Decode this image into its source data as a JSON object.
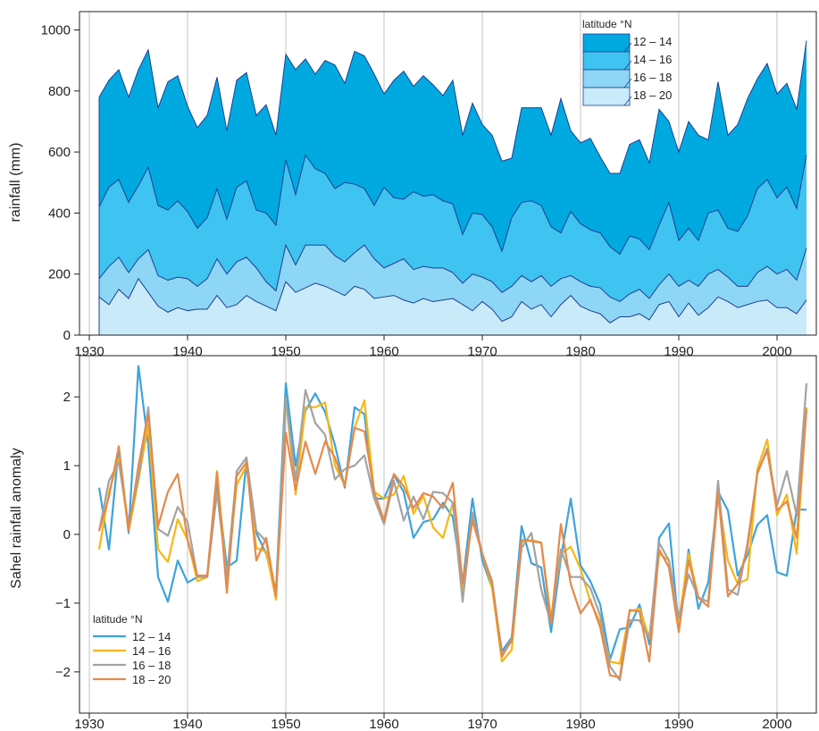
{
  "chart_data": [
    {
      "type": "area",
      "title": "",
      "xlabel": "",
      "ylabel": "rainfall  (mm)",
      "xlim": [
        1929,
        2004
      ],
      "ylim": [
        0,
        1060
      ],
      "xticks": [
        1930,
        1940,
        1950,
        1960,
        1970,
        1980,
        1990,
        2000
      ],
      "yticks": [
        0,
        200,
        400,
        600,
        800,
        1000
      ],
      "grid": "vertical",
      "stacked": true,
      "legend": {
        "title": "latitude °N",
        "position": "top-right",
        "entries": [
          "12 – 14",
          "14 – 16",
          "16 – 18",
          "18 – 20"
        ]
      },
      "colors": [
        "#00a9e0",
        "#3fc3f0",
        "#8dd6f5",
        "#c9eaf9"
      ],
      "line_color": "#1d3f8f",
      "x": [
        1931,
        1932,
        1933,
        1934,
        1935,
        1936,
        1937,
        1938,
        1939,
        1940,
        1941,
        1942,
        1943,
        1944,
        1945,
        1946,
        1947,
        1948,
        1949,
        1950,
        1951,
        1952,
        1953,
        1954,
        1955,
        1956,
        1957,
        1958,
        1959,
        1960,
        1961,
        1962,
        1963,
        1964,
        1965,
        1966,
        1967,
        1968,
        1969,
        1970,
        1971,
        1972,
        1973,
        1974,
        1975,
        1976,
        1977,
        1978,
        1979,
        1980,
        1981,
        1982,
        1983,
        1984,
        1985,
        1986,
        1987,
        1988,
        1989,
        1990,
        1991,
        1992,
        1993,
        1994,
        1995,
        1996,
        1997,
        1998,
        1999,
        2000,
        2001,
        2002,
        2003
      ],
      "series": [
        {
          "name": "18 – 20",
          "cumulative": [
            125,
            100,
            150,
            120,
            185,
            140,
            95,
            75,
            90,
            80,
            85,
            85,
            130,
            90,
            100,
            130,
            110,
            95,
            80,
            175,
            140,
            155,
            170,
            160,
            145,
            130,
            160,
            150,
            120,
            125,
            130,
            115,
            105,
            120,
            110,
            115,
            120,
            100,
            80,
            110,
            85,
            45,
            60,
            110,
            85,
            100,
            60,
            100,
            130,
            95,
            80,
            70,
            40,
            60,
            60,
            70,
            50,
            100,
            110,
            60,
            105,
            65,
            90,
            125,
            110,
            90,
            100,
            110,
            115,
            90,
            90,
            70,
            115
          ]
        },
        {
          "name": "16 – 18",
          "cumulative": [
            185,
            225,
            255,
            205,
            250,
            280,
            195,
            180,
            190,
            185,
            160,
            185,
            250,
            200,
            240,
            255,
            220,
            175,
            145,
            295,
            230,
            295,
            295,
            295,
            260,
            240,
            270,
            295,
            250,
            220,
            235,
            250,
            215,
            225,
            220,
            220,
            205,
            170,
            200,
            190,
            175,
            140,
            160,
            195,
            175,
            195,
            160,
            185,
            195,
            175,
            160,
            155,
            125,
            110,
            135,
            150,
            120,
            165,
            200,
            160,
            180,
            160,
            200,
            215,
            190,
            160,
            160,
            205,
            225,
            200,
            215,
            180,
            285
          ]
        },
        {
          "name": "14 – 16",
          "cumulative": [
            420,
            485,
            510,
            435,
            490,
            550,
            425,
            410,
            440,
            405,
            350,
            385,
            480,
            380,
            485,
            505,
            410,
            400,
            360,
            575,
            460,
            590,
            545,
            530,
            480,
            500,
            495,
            480,
            425,
            485,
            450,
            445,
            470,
            455,
            460,
            440,
            430,
            330,
            400,
            395,
            355,
            275,
            385,
            435,
            440,
            425,
            355,
            335,
            405,
            365,
            345,
            335,
            290,
            265,
            325,
            315,
            280,
            360,
            435,
            310,
            350,
            310,
            400,
            410,
            350,
            340,
            390,
            480,
            510,
            450,
            485,
            415,
            590
          ]
        },
        {
          "name": "12 – 14",
          "cumulative": [
            780,
            835,
            870,
            780,
            870,
            935,
            745,
            830,
            850,
            750,
            680,
            720,
            845,
            670,
            835,
            860,
            720,
            755,
            655,
            920,
            870,
            905,
            855,
            900,
            885,
            825,
            930,
            915,
            855,
            790,
            835,
            865,
            815,
            850,
            820,
            785,
            835,
            655,
            760,
            690,
            655,
            570,
            580,
            745,
            745,
            745,
            655,
            775,
            670,
            630,
            645,
            585,
            530,
            530,
            625,
            640,
            565,
            740,
            700,
            600,
            700,
            655,
            640,
            830,
            655,
            690,
            775,
            840,
            890,
            790,
            825,
            740,
            965
          ]
        }
      ]
    },
    {
      "type": "line",
      "title": "",
      "xlabel": "",
      "ylabel": "Sahel rainfall anomaly",
      "xlim": [
        1929,
        2004
      ],
      "ylim": [
        -2.6,
        2.6
      ],
      "xticks": [
        1930,
        1940,
        1950,
        1960,
        1970,
        1980,
        1990,
        2000
      ],
      "yticks": [
        -2,
        -1,
        0,
        1,
        2
      ],
      "grid": "vertical",
      "legend": {
        "title": "latitude °N",
        "position": "bottom-left"
      },
      "x": [
        1931,
        1932,
        1933,
        1934,
        1935,
        1936,
        1937,
        1938,
        1939,
        1940,
        1941,
        1942,
        1943,
        1944,
        1945,
        1946,
        1947,
        1948,
        1949,
        1950,
        1951,
        1952,
        1953,
        1954,
        1955,
        1956,
        1957,
        1958,
        1959,
        1960,
        1961,
        1962,
        1963,
        1964,
        1965,
        1966,
        1967,
        1968,
        1969,
        1970,
        1971,
        1972,
        1973,
        1974,
        1975,
        1976,
        1977,
        1978,
        1979,
        1980,
        1981,
        1982,
        1983,
        1984,
        1985,
        1986,
        1987,
        1988,
        1989,
        1990,
        1991,
        1992,
        1993,
        1994,
        1995,
        1996,
        1997,
        1998,
        1999,
        2000,
        2001,
        2002,
        2003
      ],
      "series": [
        {
          "name": "12 – 14",
          "color": "#3ea3dc",
          "values": [
            0.68,
            -0.22,
            1.28,
            0.02,
            2.45,
            1.3,
            -0.62,
            -0.98,
            -0.38,
            -0.7,
            -0.62,
            -0.62,
            0.78,
            -0.48,
            -0.38,
            1.08,
            0.02,
            -0.28,
            -0.82,
            2.2,
            1.0,
            1.8,
            2.05,
            1.78,
            1.3,
            0.68,
            1.85,
            1.75,
            0.52,
            0.52,
            0.86,
            0.62,
            -0.05,
            0.18,
            0.22,
            0.46,
            0.25,
            -0.72,
            0.52,
            -0.38,
            -0.78,
            -1.7,
            -1.5,
            0.12,
            -0.42,
            -0.48,
            -1.42,
            -0.35,
            0.52,
            -0.45,
            -0.68,
            -1.02,
            -1.82,
            -1.38,
            -1.35,
            -1.02,
            -1.6,
            -0.05,
            0.16,
            -1.38,
            -0.22,
            -1.08,
            -0.7,
            0.62,
            0.35,
            -0.6,
            -0.3,
            0.14,
            0.28,
            -0.55,
            -0.6,
            0.36,
            0.36
          ]
        },
        {
          "name": "14 – 16",
          "color": "#f7b714",
          "values": [
            -0.22,
            0.62,
            1.1,
            0.05,
            0.78,
            1.6,
            -0.22,
            -0.4,
            0.22,
            -0.08,
            -0.68,
            -0.62,
            0.92,
            -0.68,
            0.72,
            1.0,
            -0.2,
            -0.25,
            -0.95,
            1.98,
            0.58,
            1.85,
            1.85,
            1.92,
            1.0,
            0.72,
            1.55,
            1.95,
            0.62,
            0.52,
            0.58,
            0.85,
            0.3,
            0.56,
            0.1,
            -0.05,
            0.46,
            -0.82,
            0.28,
            -0.28,
            -0.78,
            -1.85,
            -1.68,
            -0.12,
            -0.08,
            -0.12,
            -1.22,
            -0.28,
            -0.18,
            -0.5,
            -0.98,
            -1.28,
            -1.85,
            -1.88,
            -1.12,
            -1.08,
            -1.5,
            -0.28,
            -0.38,
            -1.28,
            -0.28,
            -0.92,
            -0.98,
            0.58,
            -0.38,
            -0.72,
            -0.65,
            0.95,
            1.38,
            0.28,
            0.58,
            -0.28,
            1.85
          ]
        },
        {
          "name": "16 – 18",
          "color": "#a3a3a3",
          "values": [
            0.05,
            0.78,
            1.05,
            0.15,
            0.82,
            1.85,
            0.08,
            -0.02,
            0.4,
            0.18,
            -0.62,
            -0.62,
            0.62,
            -0.62,
            0.92,
            1.12,
            0.05,
            -0.1,
            -0.88,
            1.98,
            0.78,
            2.1,
            1.62,
            1.45,
            0.8,
            0.95,
            1.0,
            1.15,
            0.52,
            0.15,
            0.78,
            0.2,
            0.55,
            0.22,
            0.62,
            0.6,
            0.46,
            -0.98,
            0.32,
            -0.28,
            -0.68,
            -1.75,
            -1.55,
            -0.2,
            0.02,
            -0.8,
            -1.3,
            -0.22,
            -0.62,
            -0.62,
            -0.78,
            -1.18,
            -1.92,
            -2.12,
            -1.25,
            -1.25,
            -1.52,
            -0.12,
            -0.38,
            -1.22,
            -0.58,
            -0.92,
            -0.98,
            0.78,
            -0.8,
            -0.88,
            -0.12,
            0.88,
            1.25,
            0.42,
            0.92,
            0.28,
            2.2
          ]
        },
        {
          "name": "18 – 20",
          "color": "#e38a4c",
          "values": [
            0.05,
            0.55,
            1.28,
            0.05,
            1.0,
            1.75,
            0.12,
            0.62,
            0.88,
            -0.08,
            -0.6,
            -0.6,
            0.9,
            -0.85,
            0.85,
            1.05,
            -0.38,
            -0.05,
            -0.9,
            1.48,
            0.65,
            1.35,
            0.88,
            1.35,
            1.12,
            0.7,
            1.55,
            1.5,
            0.62,
            0.2,
            0.88,
            0.7,
            0.38,
            0.6,
            0.55,
            0.38,
            0.75,
            -0.72,
            0.2,
            -0.28,
            -0.72,
            -1.78,
            -1.52,
            -0.08,
            -0.1,
            -0.12,
            -1.3,
            0.15,
            -0.72,
            -1.15,
            -0.95,
            -1.35,
            -2.05,
            -2.08,
            -1.1,
            -1.12,
            -1.85,
            -0.22,
            -0.48,
            -1.42,
            -0.38,
            -0.92,
            -1.05,
            0.62,
            -0.9,
            -0.72,
            -0.18,
            0.9,
            1.22,
            0.35,
            0.48,
            -0.05,
            1.82
          ]
        }
      ]
    }
  ]
}
